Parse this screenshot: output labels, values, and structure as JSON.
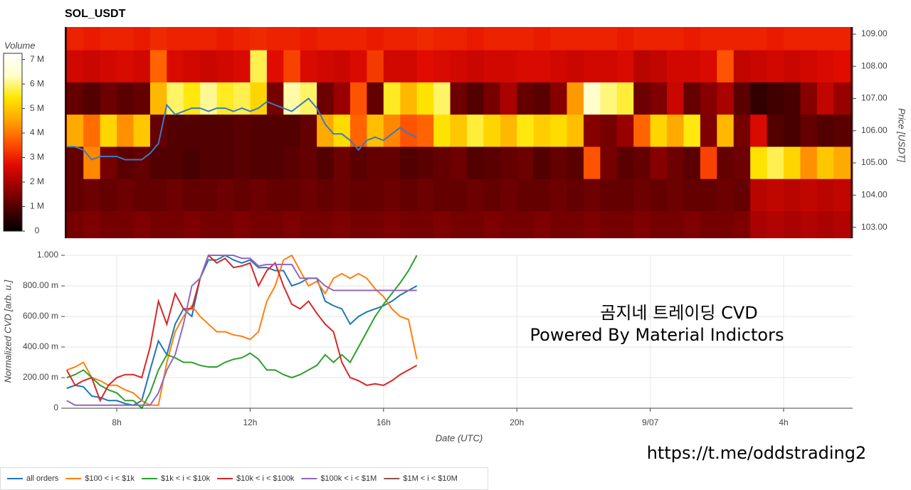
{
  "chart_data": [
    {
      "type": "heatmap",
      "title": "SOL_USDT",
      "ylabel": "Price [USDT]",
      "x": [
        6.75,
        7.25,
        7.75,
        8.25,
        8.75,
        9.25,
        9.75,
        10.25,
        10.75,
        11.25,
        11.75,
        12.25,
        12.75,
        13.25,
        13.75,
        14.25,
        14.75,
        15.25,
        15.75,
        16.25,
        16.75,
        17.25,
        17.75,
        18.25,
        18.75,
        19.25,
        19.75,
        20.25,
        20.75,
        21.25,
        21.75,
        22.25,
        22.75,
        23.25,
        23.75,
        24.25,
        24.75,
        25.25,
        25.75,
        26.25,
        26.75,
        27.25,
        27.75,
        28.25,
        28.75,
        29.25,
        29.75
      ],
      "y": [
        109,
        108,
        107,
        106,
        105,
        104,
        103
      ],
      "z": [
        [
          3000000,
          2900000,
          3000000,
          3000000,
          2900000,
          3100000,
          3000000,
          3000000,
          3000000,
          2900000,
          3000000,
          3100000,
          3000000,
          3000000,
          2900000,
          3000000,
          3000000,
          3000000,
          2900000,
          3000000,
          3000000,
          3100000,
          3000000,
          3000000,
          2900000,
          3000000,
          3000000,
          3000000,
          2900000,
          3000000,
          3000000,
          3000000,
          3000000,
          2900000,
          3000000,
          3000000,
          3000000,
          2900000,
          3000000,
          3000000,
          3000000,
          3000000,
          2900000,
          3000000,
          3000000,
          3000000,
          3000000
        ],
        [
          2500000,
          2400000,
          2500000,
          2600000,
          2500000,
          3800000,
          2600000,
          2500000,
          2400000,
          2500000,
          2600000,
          5800000,
          2700000,
          3400000,
          2600000,
          2500000,
          2400000,
          2600000,
          3300000,
          2500000,
          2500000,
          2700000,
          2600000,
          2500000,
          2400000,
          2500000,
          2500000,
          2600000,
          2600000,
          2500000,
          2400000,
          2500000,
          2500000,
          2600000,
          2200000,
          2300000,
          2500000,
          2500000,
          2600000,
          3600000,
          2300000,
          2400000,
          2500000,
          2400000,
          2500000,
          2600000,
          2700000
        ],
        [
          1200000,
          1000000,
          1300000,
          1100000,
          1200000,
          4800000,
          5900000,
          5500000,
          6100000,
          5600000,
          5800000,
          5200000,
          1400000,
          6200000,
          5900000,
          1300000,
          1800000,
          3600000,
          1200000,
          5600000,
          4800000,
          5400000,
          5900000,
          1300000,
          1000000,
          1400000,
          2000000,
          1200000,
          1100000,
          1600000,
          4400000,
          6400000,
          6000000,
          5700000,
          1300000,
          1500000,
          2400000,
          1200000,
          1600000,
          2000000,
          1100000,
          600000,
          800000,
          900000,
          1600000,
          2300000,
          1800000
        ],
        [
          4600000,
          3900000,
          5200000,
          4300000,
          5000000,
          1200000,
          1000000,
          1000000,
          1000000,
          1000000,
          1100000,
          1000000,
          1000000,
          1000000,
          1200000,
          4600000,
          5300000,
          3800000,
          4900000,
          4200000,
          3600000,
          3800000,
          5400000,
          5000000,
          5700000,
          5200000,
          4800000,
          5500000,
          5100000,
          5300000,
          4900000,
          1600000,
          1400000,
          1800000,
          3800000,
          5200000,
          4600000,
          5500000,
          1500000,
          4800000,
          1400000,
          2600000,
          1000000,
          900000,
          1200000,
          1000000,
          1100000
        ],
        [
          1200000,
          4200000,
          1400000,
          1100000,
          1200000,
          1000000,
          1000000,
          900000,
          1000000,
          1000000,
          1100000,
          1000000,
          1000000,
          1100000,
          1200000,
          1000000,
          1300000,
          1100000,
          1200000,
          1200000,
          1000000,
          1100000,
          1200000,
          1300000,
          1000000,
          1100000,
          1200000,
          1300000,
          1000000,
          1200000,
          1100000,
          3600000,
          1400000,
          1100000,
          1200000,
          1600000,
          1300000,
          1100000,
          3400000,
          1200000,
          1300000,
          5400000,
          5800000,
          5200000,
          4300000,
          5000000,
          4600000
        ],
        [
          1200000,
          1300000,
          1200000,
          1300000,
          1200000,
          1200000,
          1300000,
          1200000,
          1200000,
          1300000,
          1200000,
          1300000,
          1200000,
          1200000,
          1300000,
          1200000,
          1300000,
          1200000,
          1200000,
          1300000,
          1200000,
          1300000,
          1200000,
          1200000,
          1300000,
          1200000,
          1300000,
          1200000,
          1200000,
          1300000,
          1200000,
          1300000,
          1200000,
          1200000,
          1300000,
          1200000,
          1300000,
          1200000,
          1200000,
          1300000,
          1200000,
          2200000,
          2300000,
          2200000,
          2300000,
          2200000,
          2300000
        ],
        [
          1400000,
          1500000,
          1400000,
          1400000,
          1500000,
          1400000,
          1400000,
          1500000,
          1400000,
          1400000,
          1500000,
          1400000,
          1400000,
          1500000,
          1400000,
          1400000,
          1500000,
          1400000,
          1400000,
          1500000,
          1400000,
          1400000,
          1500000,
          1400000,
          1400000,
          1500000,
          1400000,
          1400000,
          1500000,
          1400000,
          1400000,
          1500000,
          1400000,
          1400000,
          1500000,
          1400000,
          1400000,
          1500000,
          1400000,
          1400000,
          1500000,
          2000000,
          2100000,
          2000000,
          2100000,
          2000000,
          2100000
        ]
      ],
      "xlim": [
        6.44,
        30.07
      ],
      "ylim": [
        102.66,
        109.22
      ],
      "yticks": [
        {
          "value": 103,
          "label": "103.00"
        },
        {
          "value": 104,
          "label": "104.00"
        },
        {
          "value": 105,
          "label": "105.00"
        },
        {
          "value": 106,
          "label": "106.00"
        },
        {
          "value": 107,
          "label": "107.00"
        },
        {
          "value": 108,
          "label": "108.00"
        },
        {
          "value": 109,
          "label": "109.00"
        }
      ],
      "colormap": [
        "#000000",
        "#4a0000",
        "#9a0000",
        "#e30b00",
        "#ff5500",
        "#ffa500",
        "#ffe600",
        "#ffffc8",
        "#ffffff"
      ],
      "colorbar": {
        "title": "Volume",
        "lim": [
          0,
          7250000
        ],
        "ticks": [
          0,
          {
            "value": 1000000,
            "label": "1 M"
          },
          {
            "value": 2000000,
            "label": "2 M"
          },
          {
            "value": 3000000,
            "label": "3 M"
          },
          {
            "value": 4000000,
            "label": "4 M"
          },
          {
            "value": 5000000,
            "label": "5 M"
          },
          {
            "value": 6000000,
            "label": "6 M"
          },
          {
            "value": 7000000,
            "label": "7 M"
          }
        ]
      },
      "line": {
        "color": "#3a7bbf",
        "x": [
          6.5,
          6.75,
          7,
          7.25,
          7.5,
          7.75,
          8,
          8.25,
          8.5,
          8.75,
          9,
          9.25,
          9.5,
          9.75,
          10,
          10.25,
          10.5,
          10.75,
          11,
          11.25,
          11.5,
          11.75,
          12,
          12.25,
          12.5,
          12.75,
          13,
          13.25,
          13.5,
          13.75,
          14,
          14.25,
          14.5,
          14.75,
          15,
          15.25,
          15.5,
          15.75,
          16,
          16.25,
          16.5,
          16.75,
          17
        ],
        "values": [
          105.5,
          105.5,
          105.4,
          105.1,
          105.2,
          105.2,
          105.2,
          105.1,
          105.1,
          105.1,
          105.3,
          105.6,
          106.8,
          106.5,
          106.6,
          106.7,
          106.7,
          106.6,
          106.7,
          106.7,
          106.6,
          106.7,
          106.6,
          106.7,
          106.9,
          106.8,
          106.7,
          106.6,
          106.8,
          107.0,
          106.7,
          106.2,
          105.9,
          105.9,
          105.7,
          105.4,
          105.7,
          105.8,
          105.7,
          105.9,
          106.1,
          105.9,
          105.8
        ]
      }
    },
    {
      "type": "line",
      "xlabel": "Date (UTC)",
      "ylabel": "Normalized CVD [arb. u.]",
      "x": [
        6.5,
        6.75,
        7,
        7.25,
        7.5,
        7.75,
        8,
        8.25,
        8.5,
        8.75,
        9,
        9.25,
        9.5,
        9.75,
        10,
        10.25,
        10.5,
        10.75,
        11,
        11.25,
        11.5,
        11.75,
        12,
        12.25,
        12.5,
        12.75,
        13,
        13.25,
        13.5,
        13.75,
        14,
        14.25,
        14.5,
        14.75,
        15,
        15.25,
        15.5,
        15.75,
        16,
        16.25,
        16.5,
        16.75,
        17
      ],
      "series": [
        {
          "name": "all orders",
          "color": "#1f77b4",
          "values": [
            0.13,
            0.15,
            0.14,
            0.08,
            0.07,
            0.05,
            0.05,
            0.03,
            0.02,
            0.05,
            0.25,
            0.44,
            0.35,
            0.55,
            0.65,
            0.6,
            0.85,
            0.97,
            0.97,
            1.0,
            0.97,
            0.95,
            0.97,
            0.92,
            0.92,
            0.9,
            0.9,
            0.8,
            0.82,
            0.85,
            0.85,
            0.7,
            0.67,
            0.65,
            0.55,
            0.6,
            0.63,
            0.65,
            0.67,
            0.7,
            0.74,
            0.77,
            0.8
          ]
        },
        {
          "name": "$100 < i < $1k",
          "color": "#ff7f0e",
          "values": [
            0.25,
            0.27,
            0.3,
            0.2,
            0.18,
            0.15,
            0.15,
            0.12,
            0.1,
            0.05,
            0.02,
            0.02,
            0.3,
            0.5,
            0.6,
            0.67,
            0.6,
            0.55,
            0.5,
            0.5,
            0.48,
            0.47,
            0.45,
            0.5,
            0.7,
            0.8,
            0.97,
            1.0,
            0.9,
            0.8,
            0.83,
            0.75,
            0.85,
            0.88,
            0.85,
            0.88,
            0.85,
            0.78,
            0.73,
            0.65,
            0.6,
            0.58,
            0.32
          ]
        },
        {
          "name": "$1k < i < $10k",
          "color": "#2ca02c",
          "values": [
            0.2,
            0.22,
            0.25,
            0.2,
            0.15,
            0.12,
            0.1,
            0.05,
            0.05,
            0.0,
            0.1,
            0.25,
            0.35,
            0.33,
            0.3,
            0.3,
            0.28,
            0.27,
            0.27,
            0.3,
            0.32,
            0.33,
            0.36,
            0.32,
            0.25,
            0.25,
            0.22,
            0.2,
            0.22,
            0.25,
            0.28,
            0.35,
            0.3,
            0.35,
            0.3,
            0.4,
            0.5,
            0.6,
            0.68,
            0.75,
            0.82,
            0.9,
            1.0
          ]
        },
        {
          "name": "$10k < i < $100k",
          "color": "#d62728",
          "values": [
            0.25,
            0.15,
            0.18,
            0.2,
            0.05,
            0.15,
            0.2,
            0.22,
            0.22,
            0.2,
            0.4,
            0.7,
            0.55,
            0.75,
            0.65,
            0.65,
            0.85,
            1.0,
            0.95,
            0.98,
            0.92,
            0.93,
            0.95,
            0.8,
            0.9,
            0.95,
            0.8,
            0.68,
            0.65,
            0.7,
            0.62,
            0.55,
            0.5,
            0.3,
            0.2,
            0.18,
            0.15,
            0.16,
            0.15,
            0.18,
            0.22,
            0.25,
            0.28
          ]
        },
        {
          "name": "$100k < i < $1M",
          "color": "#9467bd",
          "values": [
            0.05,
            0.02,
            0.02,
            0.02,
            0.02,
            0.02,
            0.02,
            0.02,
            0.02,
            0.02,
            0.02,
            0.1,
            0.25,
            0.35,
            0.55,
            0.8,
            0.85,
            1.0,
            1.0,
            1.0,
            1.0,
            0.98,
            0.98,
            0.93,
            0.94,
            0.94,
            0.94,
            0.94,
            0.85,
            0.85,
            0.85,
            0.8,
            0.77,
            0.77,
            0.77,
            0.77,
            0.77,
            0.77,
            0.77,
            0.77,
            0.77,
            0.77,
            0.77
          ]
        },
        {
          "name": "$1M < i < $10M",
          "color": "#8c564b",
          "values": [
            null,
            null,
            null,
            null,
            null,
            null,
            null,
            null,
            null,
            null,
            null,
            null,
            null,
            null,
            null,
            null,
            null,
            null,
            null,
            null,
            null,
            null,
            null,
            null,
            null,
            null,
            null,
            null,
            null,
            null,
            null,
            null,
            null,
            null,
            null,
            null,
            null,
            null,
            null,
            null,
            null,
            null,
            null
          ]
        }
      ],
      "xlim": [
        6.44,
        30.07
      ],
      "ylim": [
        0,
        1
      ],
      "xticks": [
        {
          "value": 8,
          "label": "8h"
        },
        {
          "value": 12,
          "label": "12h"
        },
        {
          "value": 16,
          "label": "16h"
        },
        {
          "value": 20,
          "label": "20h"
        },
        {
          "value": 24,
          "label": "9/07"
        },
        {
          "value": 28,
          "label": "4h"
        }
      ],
      "yticks": [
        0,
        {
          "value": 0.2,
          "label": "200.00 m"
        },
        {
          "value": 0.4,
          "label": "400.00 m"
        },
        {
          "value": 0.6,
          "label": "600.00 m"
        },
        {
          "value": 0.8,
          "label": "800.00 m"
        },
        {
          "value": 1,
          "label": "1.000"
        }
      ],
      "grid": true,
      "legend": "bottom-left",
      "annotations": [
        "곰지네 트레이딩 CVD",
        "Powered By Material Indictors",
        "https://t.me/oddstrading2"
      ]
    }
  ]
}
